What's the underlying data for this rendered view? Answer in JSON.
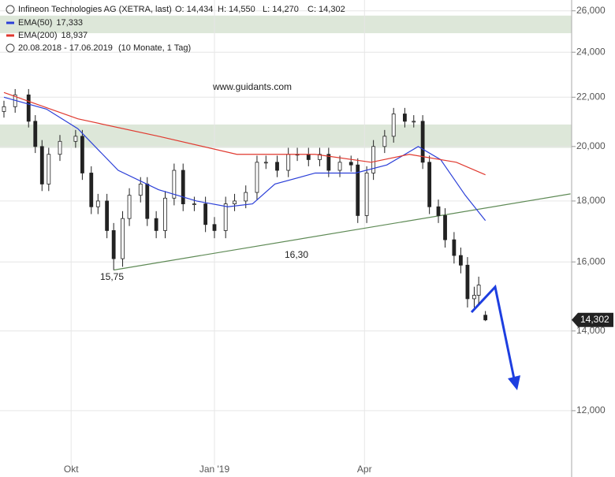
{
  "chart_data": {
    "type": "candlestick",
    "title": "Infineon Technologies AG (XETRA, last)",
    "header_values": [
      "O: 14,434",
      "H: 14,550",
      "L: 14,270",
      "C: 14,302"
    ],
    "date_range": "20.08.2018 - 17.06.2019",
    "period": "(10 Monate, 1 Tag)",
    "watermark": "www.guidants.com",
    "annotations": [
      "15,75",
      "16,30"
    ],
    "current_label": "14,302",
    "current_value": 14302,
    "log_scale": true,
    "grid": true,
    "xlim": [
      -1.76,
      253.5
    ],
    "xticks": [
      {
        "value": 30,
        "label": "Okt"
      },
      {
        "value": 94,
        "label": "Jan '19"
      },
      {
        "value": 161,
        "label": "Apr"
      }
    ],
    "ylim": [
      10800,
      26550
    ],
    "yticks": [
      {
        "value": 12000,
        "label": "12,000"
      },
      {
        "value": 14000,
        "label": "14,000"
      },
      {
        "value": 16000,
        "label": "16,000"
      },
      {
        "value": 18000,
        "label": "18,000"
      },
      {
        "value": 20000,
        "label": "20,000"
      },
      {
        "value": 22000,
        "label": "22,000"
      },
      {
        "value": 24000,
        "label": "24,000"
      },
      {
        "value": 26000,
        "label": "26,000"
      }
    ],
    "up_color": "#ffffff",
    "down_color": "#222222",
    "zone_color": "#dde7d9",
    "zones": [
      {
        "from": 19950,
        "to": 20870
      },
      {
        "from": 24900,
        "to": 25760
      }
    ],
    "trendline": {
      "color": "#5e8a55",
      "x": [
        49,
        253
      ],
      "values": [
        15750,
        18250
      ]
    },
    "x": [
      0,
      5,
      11,
      14,
      17,
      20,
      25,
      32,
      35,
      39,
      42,
      46,
      49,
      53,
      56,
      61,
      64,
      68,
      72,
      76,
      80,
      85,
      90,
      94,
      99,
      103,
      108,
      113,
      117,
      122,
      127,
      131,
      136,
      141,
      145,
      150,
      155,
      158,
      162,
      165,
      170,
      174,
      179,
      183,
      187,
      190,
      194,
      197,
      201,
      204,
      207,
      210,
      212,
      215
    ],
    "open": [
      21400,
      21600,
      22100,
      21000,
      20000,
      18600,
      19700,
      20200,
      20400,
      19000,
      17800,
      18000,
      17000,
      16100,
      17400,
      18200,
      18600,
      17400,
      17000,
      18100,
      19100,
      17900,
      17900,
      17200,
      17000,
      17900,
      18000,
      18300,
      19400,
      19400,
      19100,
      19700,
      19700,
      19500,
      19700,
      19100,
      19400,
      19300,
      17500,
      19000,
      20000,
      20400,
      21300,
      21000,
      21000,
      19400,
      17800,
      17500,
      16700,
      16200,
      15900,
      14900,
      15000,
      14434
    ],
    "high": [
      21850,
      22350,
      22350,
      21250,
      20250,
      19950,
      20450,
      20650,
      20650,
      19250,
      18250,
      18250,
      17250,
      17650,
      18450,
      18850,
      18850,
      17650,
      18350,
      19350,
      19350,
      18150,
      18150,
      17450,
      18150,
      18250,
      18550,
      19650,
      19650,
      19650,
      19950,
      19950,
      19950,
      19950,
      19950,
      19650,
      19650,
      19550,
      19250,
      20250,
      20650,
      21550,
      21550,
      21250,
      21250,
      19650,
      18050,
      17750,
      16950,
      16450,
      16150,
      15250,
      15550,
      14550
    ],
    "low": [
      21150,
      21350,
      20750,
      19750,
      18350,
      18350,
      19450,
      19950,
      18750,
      17550,
      17550,
      16750,
      15750,
      15850,
      17150,
      17950,
      17150,
      16750,
      16750,
      17850,
      17650,
      17650,
      16950,
      16750,
      16750,
      17650,
      17750,
      18050,
      19150,
      18850,
      18850,
      19450,
      19250,
      19250,
      18850,
      18850,
      19050,
      17250,
      17250,
      18750,
      19750,
      20150,
      20750,
      20750,
      19150,
      17550,
      17250,
      16450,
      15950,
      15650,
      14650,
      14650,
      14750,
      14270
    ],
    "close": [
      21600,
      22100,
      21000,
      20000,
      18600,
      19700,
      20200,
      20400,
      19000,
      17800,
      18000,
      17000,
      16100,
      17400,
      18200,
      18600,
      17400,
      17000,
      18100,
      19100,
      17900,
      17900,
      17200,
      17000,
      17900,
      18000,
      18300,
      19400,
      19400,
      19100,
      19700,
      19700,
      19500,
      19700,
      19100,
      19400,
      19300,
      17500,
      19000,
      20000,
      20400,
      21300,
      21000,
      21000,
      19400,
      17800,
      17500,
      16700,
      16200,
      15900,
      14900,
      15000,
      15300,
      14302
    ],
    "series": [
      {
        "name": "EMA(50)",
        "legend_value": "17,333",
        "color": "#2b3fd8",
        "x": [
          0,
          19,
          33,
          51,
          69,
          86,
          100,
          111,
          121,
          139,
          157,
          171,
          185,
          195,
          206,
          215
        ],
        "values": [
          22000,
          21500,
          20700,
          19100,
          18400,
          18000,
          17800,
          17900,
          18600,
          19000,
          19000,
          19300,
          20000,
          19500,
          18200,
          17333
        ]
      },
      {
        "name": "EMA(200)",
        "legend_value": "18,937",
        "color": "#e0392f",
        "x": [
          0,
          33,
          69,
          104,
          139,
          164,
          181,
          202,
          215
        ],
        "values": [
          22200,
          21100,
          20400,
          19700,
          19700,
          19400,
          19700,
          19400,
          18937
        ]
      }
    ]
  }
}
